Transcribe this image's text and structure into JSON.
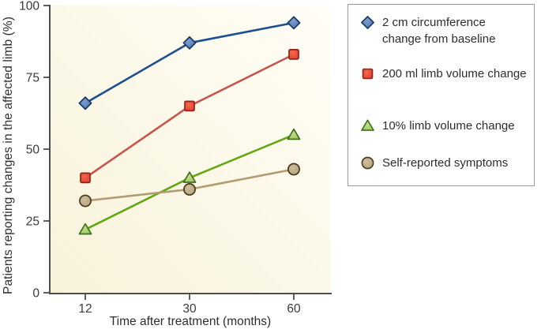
{
  "chart_data": {
    "type": "line",
    "title": "",
    "xlabel": "Time after treatment (months)",
    "ylabel": "Patients reporting changes in the affected limb (%)",
    "x_categories": [
      "12",
      "30",
      "60"
    ],
    "yticks": [
      "0",
      "25",
      "50",
      "75",
      "100"
    ],
    "ylim": [
      0,
      100
    ],
    "grid": false,
    "legend_position": "right",
    "series": [
      {
        "name": "2 cm circumference change from baseline",
        "marker": "diamond",
        "values": [
          66,
          87,
          94
        ],
        "line_color": "#1d4f93",
        "fill_color": "#4a74b2",
        "fill_light": "#7d9dce",
        "stroke_color": "#1a3763"
      },
      {
        "name": "200 ml limb volume change",
        "marker": "square",
        "values": [
          40,
          65,
          83
        ],
        "line_color": "#c8544b",
        "fill_color": "#e23c2a",
        "fill_light": "#f26a4e",
        "stroke_color": "#8f231a"
      },
      {
        "name": "10% limb volume change",
        "marker": "triangle",
        "values": [
          22,
          40,
          55
        ],
        "line_color": "#63a812",
        "fill_color": "#9fc65b",
        "fill_light": "#c4dd90",
        "stroke_color": "#3e721a"
      },
      {
        "name": "Self-reported symptoms",
        "marker": "circle",
        "values": [
          32,
          36,
          43
        ],
        "line_color": "#b09d72",
        "fill_color": "#b2a077",
        "fill_light": "#cdbf9c",
        "stroke_color": "#45381f"
      }
    ]
  },
  "colors": {
    "axis": "#4d4d4d",
    "tick_text": "#3a3a3a",
    "plot_bg_start": "#f8f2da",
    "plot_bg_mid": "#fcf9ea",
    "plot_bg_end": "#fffdf6",
    "legend_border": "#999999",
    "legend_bg": "#ffffff"
  }
}
